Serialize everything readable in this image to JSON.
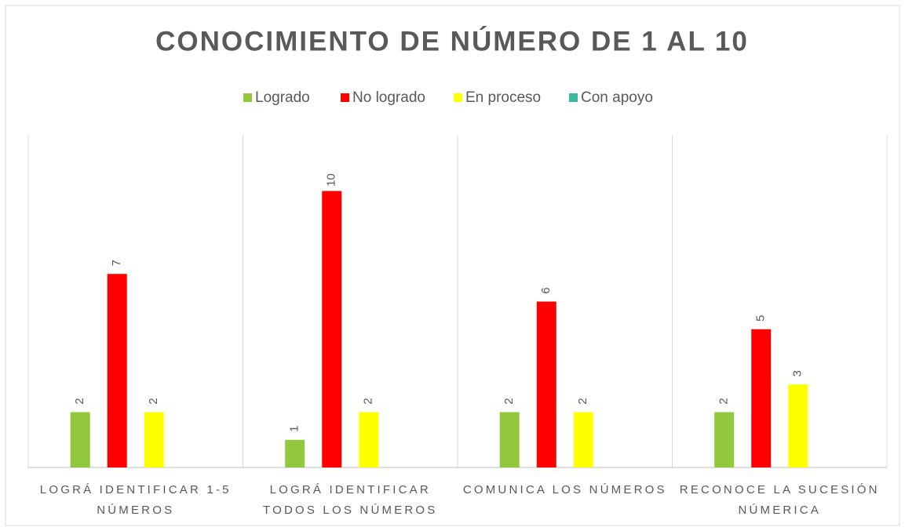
{
  "chart_data": {
    "type": "bar",
    "title": "CONOCIMIENTO DE NÚMERO DE 1 AL 10",
    "categories": [
      "LOGRÁ IDENTIFICAR 1-5 NÚMEROS",
      "LOGRÁ IDENTIFICAR TODOS LOS NÚMEROS",
      "COMUNICA LOS NÚMEROS",
      "RECONOCE LA SUCESIÓN NÚMERICA"
    ],
    "series": [
      {
        "name": "Logrado",
        "color": "#92c83e",
        "values": [
          2,
          1,
          2,
          2
        ]
      },
      {
        "name": "No logrado",
        "color": "#ff0000",
        "values": [
          7,
          10,
          6,
          5
        ]
      },
      {
        "name": "En proceso",
        "color": "#ffff00",
        "values": [
          2,
          2,
          2,
          3
        ]
      },
      {
        "name": "Con apoyo",
        "color": "#3cb89a",
        "values": [
          null,
          null,
          null,
          null
        ]
      }
    ],
    "ylim": [
      0,
      12
    ],
    "legend": "top"
  }
}
